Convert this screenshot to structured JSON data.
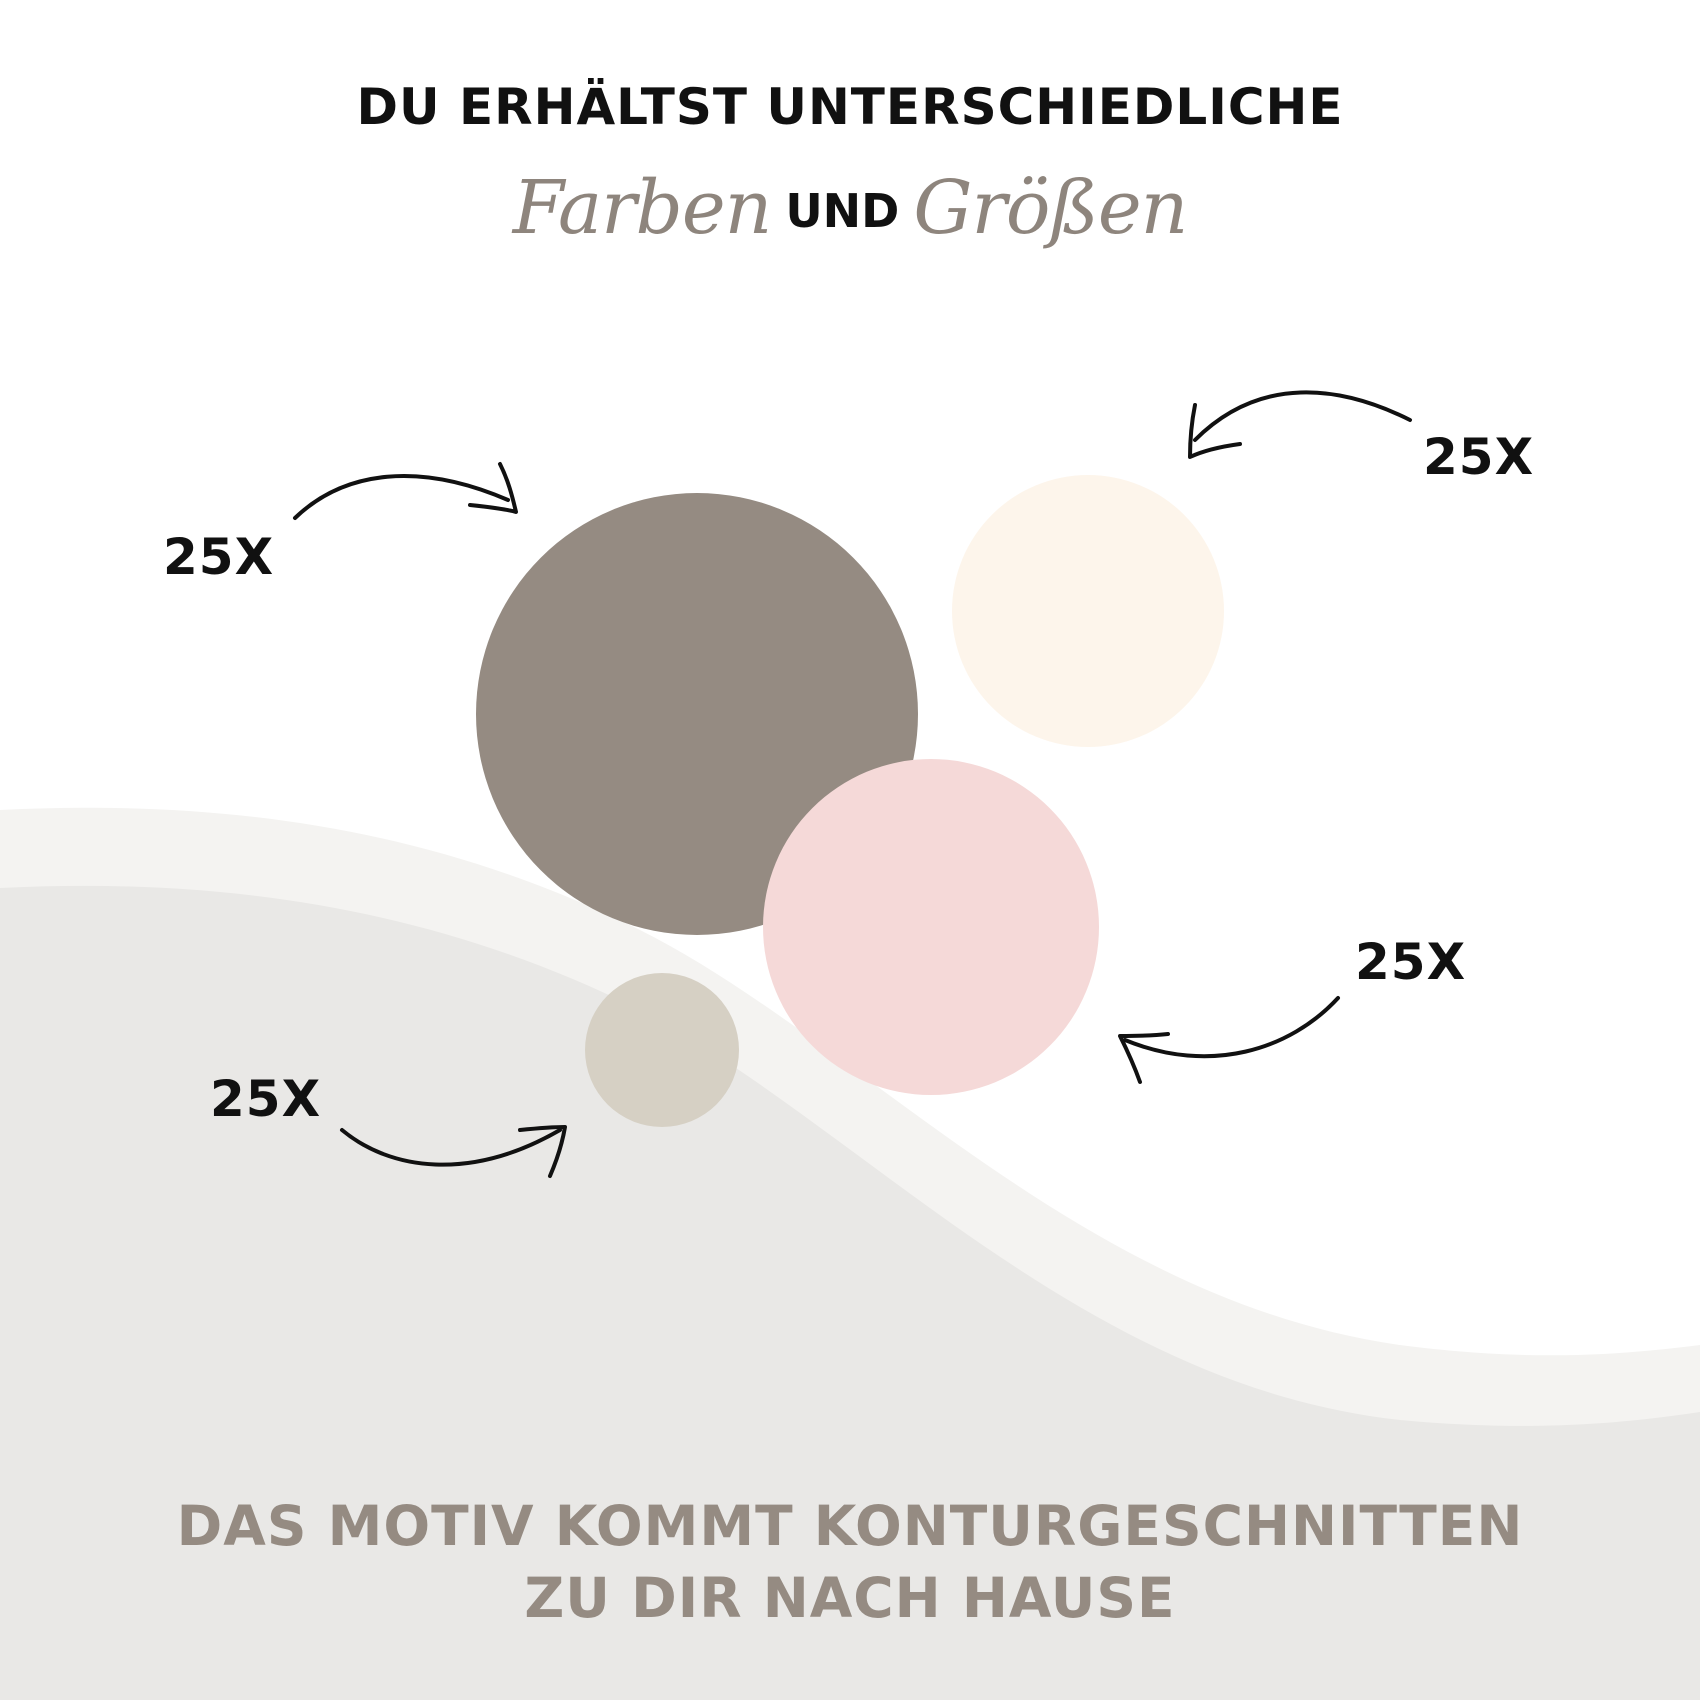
{
  "header": {
    "line1": "DU ERHÄLTST UNTERSCHIEDLICHE",
    "word_colors": "Farben",
    "word_and": "UND",
    "word_sizes": "Größen"
  },
  "circles": [
    {
      "name": "taupe-circle",
      "color": "#958b82",
      "count_label": "25X"
    },
    {
      "name": "cream-circle",
      "color": "#fdf5eb",
      "count_label": "25X"
    },
    {
      "name": "pink-circle",
      "color": "#f5d9d8",
      "count_label": "25X"
    },
    {
      "name": "beige-circle",
      "color": "#d6d0c4",
      "count_label": "25X"
    }
  ],
  "footer": {
    "line1": "DAS MOTIV KOMMT KONTURGESCHNITTEN",
    "line2": "ZU DIR NACH HAUSE"
  },
  "colors": {
    "background": "#ffffff",
    "wave_light": "#f4f3f1",
    "wave_dark": "#e9e8e6",
    "arrow": "#111111"
  }
}
